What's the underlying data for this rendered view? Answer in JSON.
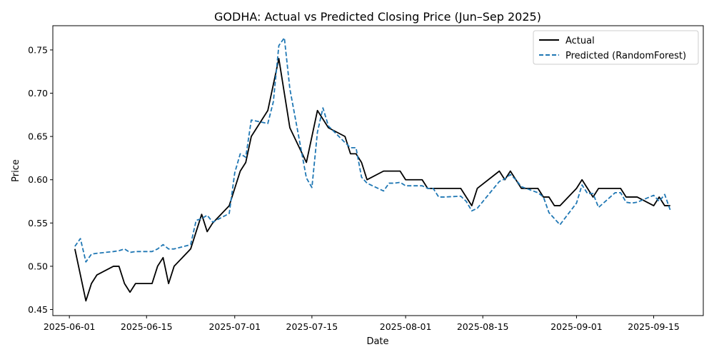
{
  "chart_data": {
    "type": "line",
    "title": "GODHA: Actual vs Predicted Closing Price (Jun–Sep 2025)",
    "xlabel": "Date",
    "ylabel": "Price",
    "x_axis_type": "date",
    "xlim": [
      "2025-05-29",
      "2025-09-24"
    ],
    "ylim": [
      0.443,
      0.778
    ],
    "x_ticks": [
      "2025-06-01",
      "2025-06-15",
      "2025-07-01",
      "2025-07-15",
      "2025-08-01",
      "2025-08-15",
      "2025-09-01",
      "2025-09-15"
    ],
    "y_ticks": [
      0.45,
      0.5,
      0.55,
      0.6,
      0.65,
      0.7,
      0.75
    ],
    "y_tick_labels": [
      "0.45",
      "0.50",
      "0.55",
      "0.60",
      "0.65",
      "0.70",
      "0.75"
    ],
    "grid": false,
    "legend_position": "top-right",
    "series": [
      {
        "name": "Actual",
        "color": "#000000",
        "style": "solid",
        "points": [
          [
            "2025-06-02",
            0.52
          ],
          [
            "2025-06-03",
            0.49
          ],
          [
            "2025-06-04",
            0.46
          ],
          [
            "2025-06-05",
            0.48
          ],
          [
            "2025-06-06",
            0.49
          ],
          [
            "2025-06-09",
            0.5
          ],
          [
            "2025-06-10",
            0.5
          ],
          [
            "2025-06-11",
            0.48
          ],
          [
            "2025-06-12",
            0.47
          ],
          [
            "2025-06-13",
            0.48
          ],
          [
            "2025-06-16",
            0.48
          ],
          [
            "2025-06-17",
            0.5
          ],
          [
            "2025-06-18",
            0.51
          ],
          [
            "2025-06-19",
            0.48
          ],
          [
            "2025-06-20",
            0.5
          ],
          [
            "2025-06-23",
            0.52
          ],
          [
            "2025-06-24",
            0.54
          ],
          [
            "2025-06-25",
            0.56
          ],
          [
            "2025-06-26",
            0.54
          ],
          [
            "2025-06-27",
            0.55
          ],
          [
            "2025-06-30",
            0.57
          ],
          [
            "2025-07-01",
            0.59
          ],
          [
            "2025-07-02",
            0.61
          ],
          [
            "2025-07-03",
            0.62
          ],
          [
            "2025-07-04",
            0.65
          ],
          [
            "2025-07-07",
            0.68
          ],
          [
            "2025-07-08",
            0.71
          ],
          [
            "2025-07-09",
            0.74
          ],
          [
            "2025-07-10",
            0.7
          ],
          [
            "2025-07-11",
            0.66
          ],
          [
            "2025-07-14",
            0.62
          ],
          [
            "2025-07-15",
            0.65
          ],
          [
            "2025-07-16",
            0.68
          ],
          [
            "2025-07-17",
            0.67
          ],
          [
            "2025-07-18",
            0.66
          ],
          [
            "2025-07-21",
            0.65
          ],
          [
            "2025-07-22",
            0.63
          ],
          [
            "2025-07-23",
            0.63
          ],
          [
            "2025-07-24",
            0.62
          ],
          [
            "2025-07-25",
            0.6
          ],
          [
            "2025-07-28",
            0.61
          ],
          [
            "2025-07-29",
            0.61
          ],
          [
            "2025-07-30",
            0.61
          ],
          [
            "2025-07-31",
            0.61
          ],
          [
            "2025-08-01",
            0.6
          ],
          [
            "2025-08-04",
            0.6
          ],
          [
            "2025-08-05",
            0.59
          ],
          [
            "2025-08-06",
            0.59
          ],
          [
            "2025-08-07",
            0.59
          ],
          [
            "2025-08-08",
            0.59
          ],
          [
            "2025-08-11",
            0.59
          ],
          [
            "2025-08-12",
            0.58
          ],
          [
            "2025-08-13",
            0.57
          ],
          [
            "2025-08-14",
            0.59
          ],
          [
            "2025-08-18",
            0.61
          ],
          [
            "2025-08-19",
            0.6
          ],
          [
            "2025-08-20",
            0.61
          ],
          [
            "2025-08-21",
            0.6
          ],
          [
            "2025-08-22",
            0.59
          ],
          [
            "2025-08-25",
            0.59
          ],
          [
            "2025-08-26",
            0.58
          ],
          [
            "2025-08-27",
            0.58
          ],
          [
            "2025-08-28",
            0.57
          ],
          [
            "2025-08-29",
            0.57
          ],
          [
            "2025-09-01",
            0.59
          ],
          [
            "2025-09-02",
            0.6
          ],
          [
            "2025-09-03",
            0.59
          ],
          [
            "2025-09-04",
            0.58
          ],
          [
            "2025-09-05",
            0.59
          ],
          [
            "2025-09-08",
            0.59
          ],
          [
            "2025-09-09",
            0.59
          ],
          [
            "2025-09-10",
            0.58
          ],
          [
            "2025-09-11",
            0.58
          ],
          [
            "2025-09-12",
            0.58
          ],
          [
            "2025-09-15",
            0.57
          ],
          [
            "2025-09-16",
            0.58
          ],
          [
            "2025-09-17",
            0.57
          ],
          [
            "2025-09-18",
            0.57
          ]
        ]
      },
      {
        "name": "Predicted (RandomForest)",
        "color": "#1f77b4",
        "style": "dashed",
        "points": [
          [
            "2025-06-02",
            0.523
          ],
          [
            "2025-06-03",
            0.532
          ],
          [
            "2025-06-04",
            0.505
          ],
          [
            "2025-06-05",
            0.514
          ],
          [
            "2025-06-06",
            0.515
          ],
          [
            "2025-06-09",
            0.517
          ],
          [
            "2025-06-10",
            0.518
          ],
          [
            "2025-06-11",
            0.52
          ],
          [
            "2025-06-12",
            0.516
          ],
          [
            "2025-06-13",
            0.517
          ],
          [
            "2025-06-16",
            0.517
          ],
          [
            "2025-06-17",
            0.52
          ],
          [
            "2025-06-18",
            0.525
          ],
          [
            "2025-06-19",
            0.52
          ],
          [
            "2025-06-20",
            0.52
          ],
          [
            "2025-06-23",
            0.525
          ],
          [
            "2025-06-24",
            0.553
          ],
          [
            "2025-06-25",
            0.555
          ],
          [
            "2025-06-26",
            0.559
          ],
          [
            "2025-06-27",
            0.551
          ],
          [
            "2025-06-30",
            0.561
          ],
          [
            "2025-07-01",
            0.608
          ],
          [
            "2025-07-02",
            0.63
          ],
          [
            "2025-07-03",
            0.626
          ],
          [
            "2025-07-04",
            0.669
          ],
          [
            "2025-07-07",
            0.665
          ],
          [
            "2025-07-08",
            0.69
          ],
          [
            "2025-07-09",
            0.755
          ],
          [
            "2025-07-10",
            0.764
          ],
          [
            "2025-07-11",
            0.705
          ],
          [
            "2025-07-14",
            0.602
          ],
          [
            "2025-07-15",
            0.591
          ],
          [
            "2025-07-16",
            0.655
          ],
          [
            "2025-07-17",
            0.683
          ],
          [
            "2025-07-18",
            0.662
          ],
          [
            "2025-07-21",
            0.643
          ],
          [
            "2025-07-22",
            0.637
          ],
          [
            "2025-07-23",
            0.637
          ],
          [
            "2025-07-24",
            0.603
          ],
          [
            "2025-07-25",
            0.596
          ],
          [
            "2025-07-28",
            0.587
          ],
          [
            "2025-07-29",
            0.596
          ],
          [
            "2025-07-30",
            0.596
          ],
          [
            "2025-07-31",
            0.597
          ],
          [
            "2025-08-01",
            0.593
          ],
          [
            "2025-08-04",
            0.593
          ],
          [
            "2025-08-05",
            0.59
          ],
          [
            "2025-08-06",
            0.59
          ],
          [
            "2025-08-07",
            0.58
          ],
          [
            "2025-08-08",
            0.58
          ],
          [
            "2025-08-11",
            0.581
          ],
          [
            "2025-08-12",
            0.575
          ],
          [
            "2025-08-13",
            0.564
          ],
          [
            "2025-08-14",
            0.567
          ],
          [
            "2025-08-18",
            0.598
          ],
          [
            "2025-08-19",
            0.601
          ],
          [
            "2025-08-20",
            0.606
          ],
          [
            "2025-08-21",
            0.6
          ],
          [
            "2025-08-22",
            0.592
          ],
          [
            "2025-08-25",
            0.585
          ],
          [
            "2025-08-26",
            0.58
          ],
          [
            "2025-08-27",
            0.562
          ],
          [
            "2025-08-28",
            0.555
          ],
          [
            "2025-08-29",
            0.548
          ],
          [
            "2025-09-01",
            0.573
          ],
          [
            "2025-09-02",
            0.594
          ],
          [
            "2025-09-03",
            0.584
          ],
          [
            "2025-09-04",
            0.584
          ],
          [
            "2025-09-05",
            0.568
          ],
          [
            "2025-09-08",
            0.585
          ],
          [
            "2025-09-09",
            0.585
          ],
          [
            "2025-09-10",
            0.574
          ],
          [
            "2025-09-11",
            0.573
          ],
          [
            "2025-09-12",
            0.574
          ],
          [
            "2025-09-15",
            0.582
          ],
          [
            "2025-09-16",
            0.575
          ],
          [
            "2025-09-17",
            0.583
          ],
          [
            "2025-09-18",
            0.565
          ]
        ]
      }
    ]
  }
}
